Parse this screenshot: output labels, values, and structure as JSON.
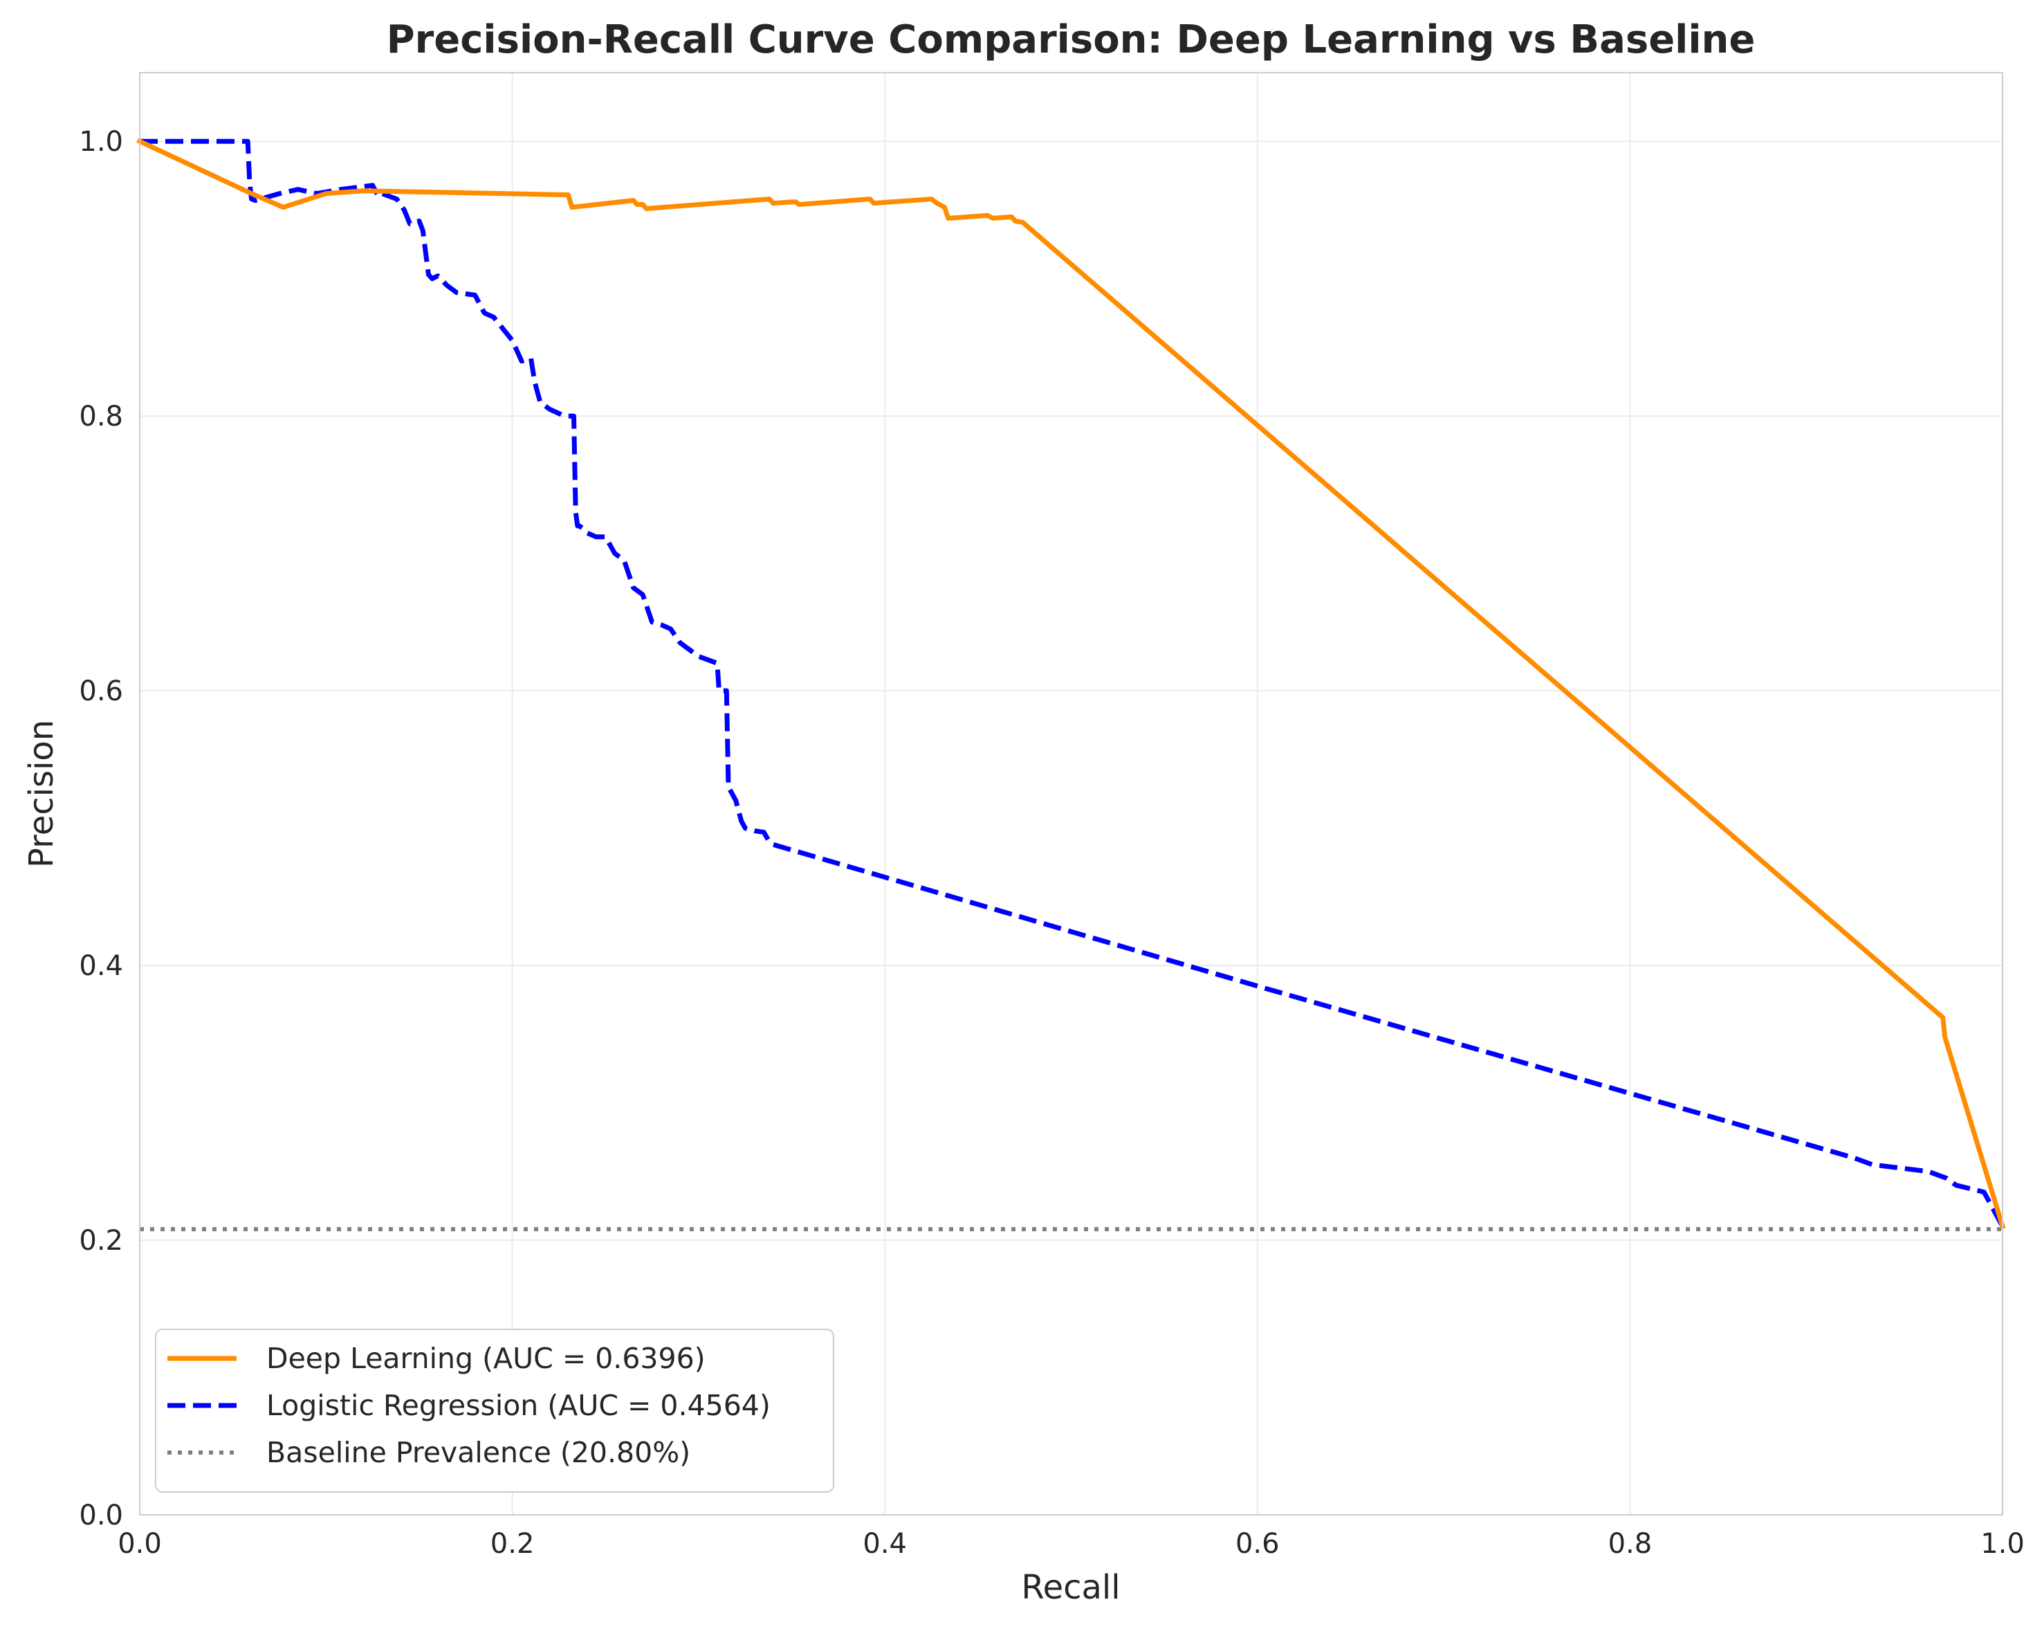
{
  "chart_data": {
    "type": "line",
    "title": "Precision-Recall Curve Comparison: Deep Learning vs Baseline",
    "xlabel": "Recall",
    "ylabel": "Precision",
    "xlim": [
      0,
      1
    ],
    "ylim": [
      0,
      1.05
    ],
    "xticks": [
      0.0,
      0.2,
      0.4,
      0.6,
      0.8,
      1.0
    ],
    "yticks": [
      0.0,
      0.2,
      0.4,
      0.6,
      0.8,
      1.0
    ],
    "xtick_labels": [
      "0.0",
      "0.2",
      "0.4",
      "0.6",
      "0.8",
      "1.0"
    ],
    "ytick_labels": [
      "0.0",
      "0.2",
      "0.4",
      "0.6",
      "0.8",
      "1.0"
    ],
    "grid": true,
    "legend_position": "lower-left",
    "series": [
      {
        "name": "Deep Learning (AUC = 0.6396)",
        "color": "#ff8c00",
        "style": "solid",
        "x": [
          0.0,
          0.06,
          0.077,
          0.1,
          0.12,
          0.23,
          0.232,
          0.265,
          0.267,
          0.27,
          0.272,
          0.338,
          0.34,
          0.352,
          0.354,
          0.392,
          0.394,
          0.425,
          0.428,
          0.432,
          0.434,
          0.455,
          0.458,
          0.468,
          0.47,
          0.474,
          0.968,
          0.969,
          1.0
        ],
        "y": [
          1.0,
          0.962,
          0.952,
          0.962,
          0.964,
          0.961,
          0.952,
          0.957,
          0.954,
          0.954,
          0.951,
          0.958,
          0.955,
          0.956,
          0.954,
          0.958,
          0.955,
          0.958,
          0.955,
          0.952,
          0.944,
          0.946,
          0.944,
          0.945,
          0.942,
          0.941,
          0.362,
          0.348,
          0.21
        ]
      },
      {
        "name": "Logistic Regression (AUC = 0.4564)",
        "color": "#0000ff",
        "style": "dashed",
        "x": [
          0.0,
          0.058,
          0.059,
          0.06,
          0.062,
          0.075,
          0.085,
          0.095,
          0.108,
          0.125,
          0.128,
          0.13,
          0.138,
          0.142,
          0.145,
          0.15,
          0.152,
          0.155,
          0.157,
          0.16,
          0.165,
          0.17,
          0.18,
          0.185,
          0.19,
          0.2,
          0.205,
          0.21,
          0.212,
          0.215,
          0.22,
          0.228,
          0.233,
          0.234,
          0.235,
          0.236,
          0.238,
          0.24,
          0.245,
          0.25,
          0.255,
          0.26,
          0.265,
          0.27,
          0.275,
          0.28,
          0.285,
          0.29,
          0.3,
          0.31,
          0.311,
          0.315,
          0.316,
          0.318,
          0.32,
          0.323,
          0.325,
          0.33,
          0.335,
          0.338,
          0.34,
          0.6,
          0.92,
          0.93,
          0.96,
          0.97,
          0.975,
          0.99,
          1.0
        ],
        "y": [
          1.0,
          1.0,
          0.97,
          0.958,
          0.957,
          0.962,
          0.965,
          0.962,
          0.965,
          0.968,
          0.96,
          0.962,
          0.958,
          0.95,
          0.94,
          0.942,
          0.935,
          0.903,
          0.9,
          0.902,
          0.895,
          0.89,
          0.888,
          0.875,
          0.872,
          0.855,
          0.84,
          0.842,
          0.825,
          0.81,
          0.805,
          0.8,
          0.8,
          0.73,
          0.72,
          0.72,
          0.718,
          0.715,
          0.712,
          0.712,
          0.7,
          0.695,
          0.675,
          0.67,
          0.65,
          0.648,
          0.645,
          0.635,
          0.625,
          0.62,
          0.6,
          0.6,
          0.53,
          0.525,
          0.52,
          0.505,
          0.5,
          0.498,
          0.497,
          0.49,
          0.488,
          0.385,
          0.26,
          0.255,
          0.25,
          0.245,
          0.24,
          0.235,
          0.21
        ]
      },
      {
        "name": "Baseline Prevalence (20.80%)",
        "color": "#808080",
        "style": "dotted",
        "x": [
          0.0,
          1.0
        ],
        "y": [
          0.208,
          0.208
        ]
      }
    ]
  }
}
